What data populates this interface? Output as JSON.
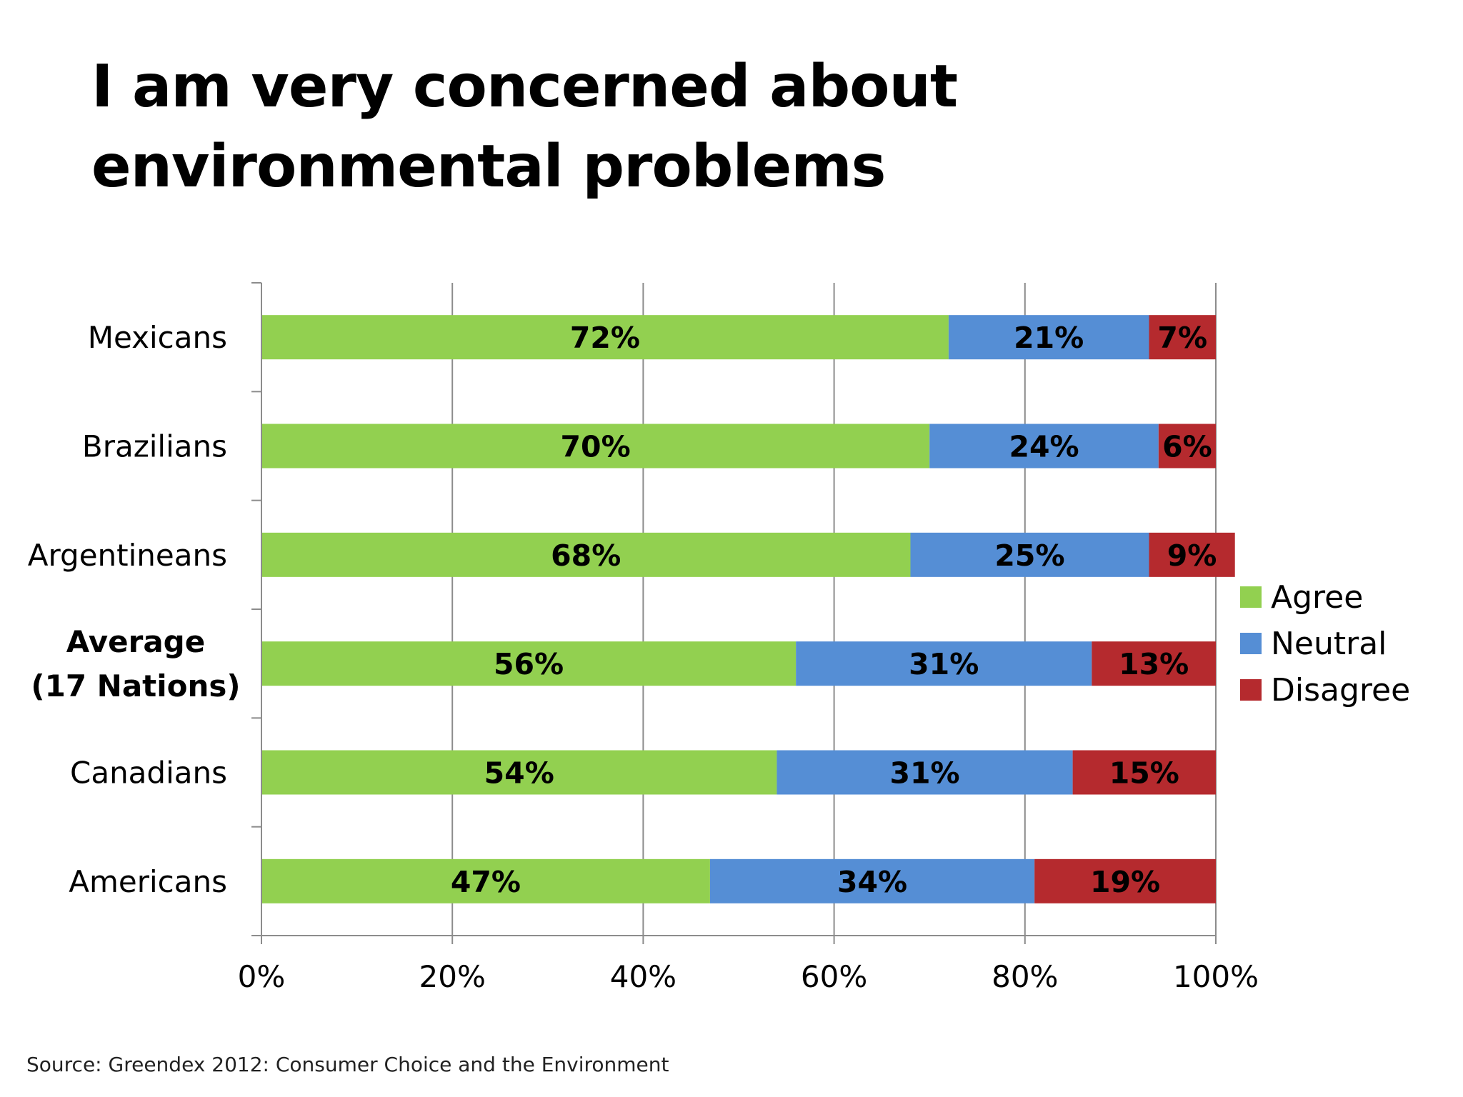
{
  "title": "I am very concerned about environmental problems",
  "source": "Source: Greendex 2012: Consumer Choice and the Environment",
  "chart_data": {
    "type": "bar",
    "orientation": "horizontal",
    "stacked": "percent",
    "categories": [
      "Mexicans",
      "Brazilians",
      "Argentineans",
      "Average (17 Nations)",
      "Canadians",
      "Americans"
    ],
    "category_display": [
      [
        "Mexicans"
      ],
      [
        "Brazilians"
      ],
      [
        "Argentineans"
      ],
      [
        "Average",
        "(17 Nations)"
      ],
      [
        "Canadians"
      ],
      [
        "Americans"
      ]
    ],
    "highlight_category": "Average (17 Nations)",
    "series": [
      {
        "name": "Agree",
        "color": "#92D050",
        "values": [
          72,
          70,
          68,
          56,
          54,
          47
        ],
        "labels": [
          "72%",
          "70%",
          "68%",
          "56%",
          "54%",
          "47%"
        ]
      },
      {
        "name": "Neutral",
        "color": "#558ED5",
        "values": [
          21,
          24,
          25,
          31,
          31,
          34
        ],
        "labels": [
          "21%",
          "24%",
          "25%",
          "31%",
          "31%",
          "34%"
        ]
      },
      {
        "name": "Disagree",
        "color": "#B52A2E",
        "values": [
          7,
          6,
          9,
          13,
          15,
          19
        ],
        "labels": [
          "7%",
          "6%",
          "9%",
          "13%",
          "15%",
          "19%"
        ]
      }
    ],
    "xlim": [
      0,
      100
    ],
    "x_ticks": [
      0,
      20,
      40,
      60,
      80,
      100
    ],
    "x_tick_labels": [
      "0%",
      "20%",
      "40%",
      "60%",
      "80%",
      "100%"
    ],
    "grid": true,
    "legend_position": "right"
  }
}
